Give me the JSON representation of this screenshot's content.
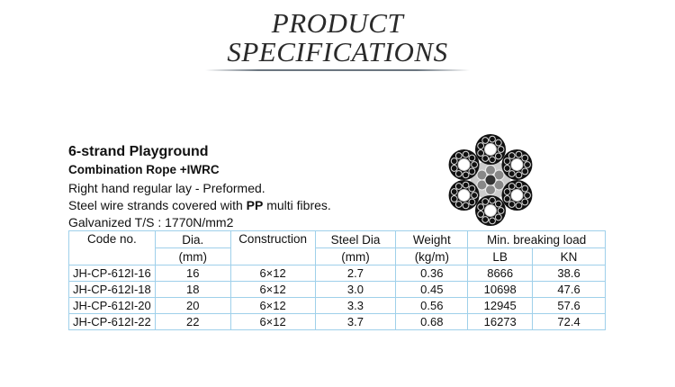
{
  "header": {
    "title_line1": "PRODUCT",
    "title_line2": "SPECIFICATIONS"
  },
  "product": {
    "name": "6-strand Playground",
    "subtitle": "Combination Rope +IWRC",
    "line1": "Right hand regular lay - Preformed.",
    "line2_before": "Steel wire strands covered with ",
    "line2_bold": "PP",
    "line2_after": " multi fibres.",
    "line3": "Galvanized T/S : 1770N/mm2"
  },
  "table": {
    "header1": [
      "Code no.",
      "Dia.",
      "Construction",
      "Steel Dia",
      "Weight",
      "Min. breaking load"
    ],
    "header2": [
      "(mm)",
      "(mm)",
      "(kg/m)",
      "LB",
      "KN"
    ],
    "rows": [
      [
        "JH-CP-612I-16",
        "16",
        "6×12",
        "2.7",
        "0.36",
        "8666",
        "38.6"
      ],
      [
        "JH-CP-612I-18",
        "18",
        "6×12",
        "3.0",
        "0.45",
        "10698",
        "47.6"
      ],
      [
        "JH-CP-612I-20",
        "20",
        "6×12",
        "3.3",
        "0.56",
        "12945",
        "57.6"
      ],
      [
        "JH-CP-612I-22",
        "22",
        "6×12",
        "3.7",
        "0.68",
        "16273",
        "72.4"
      ]
    ]
  }
}
